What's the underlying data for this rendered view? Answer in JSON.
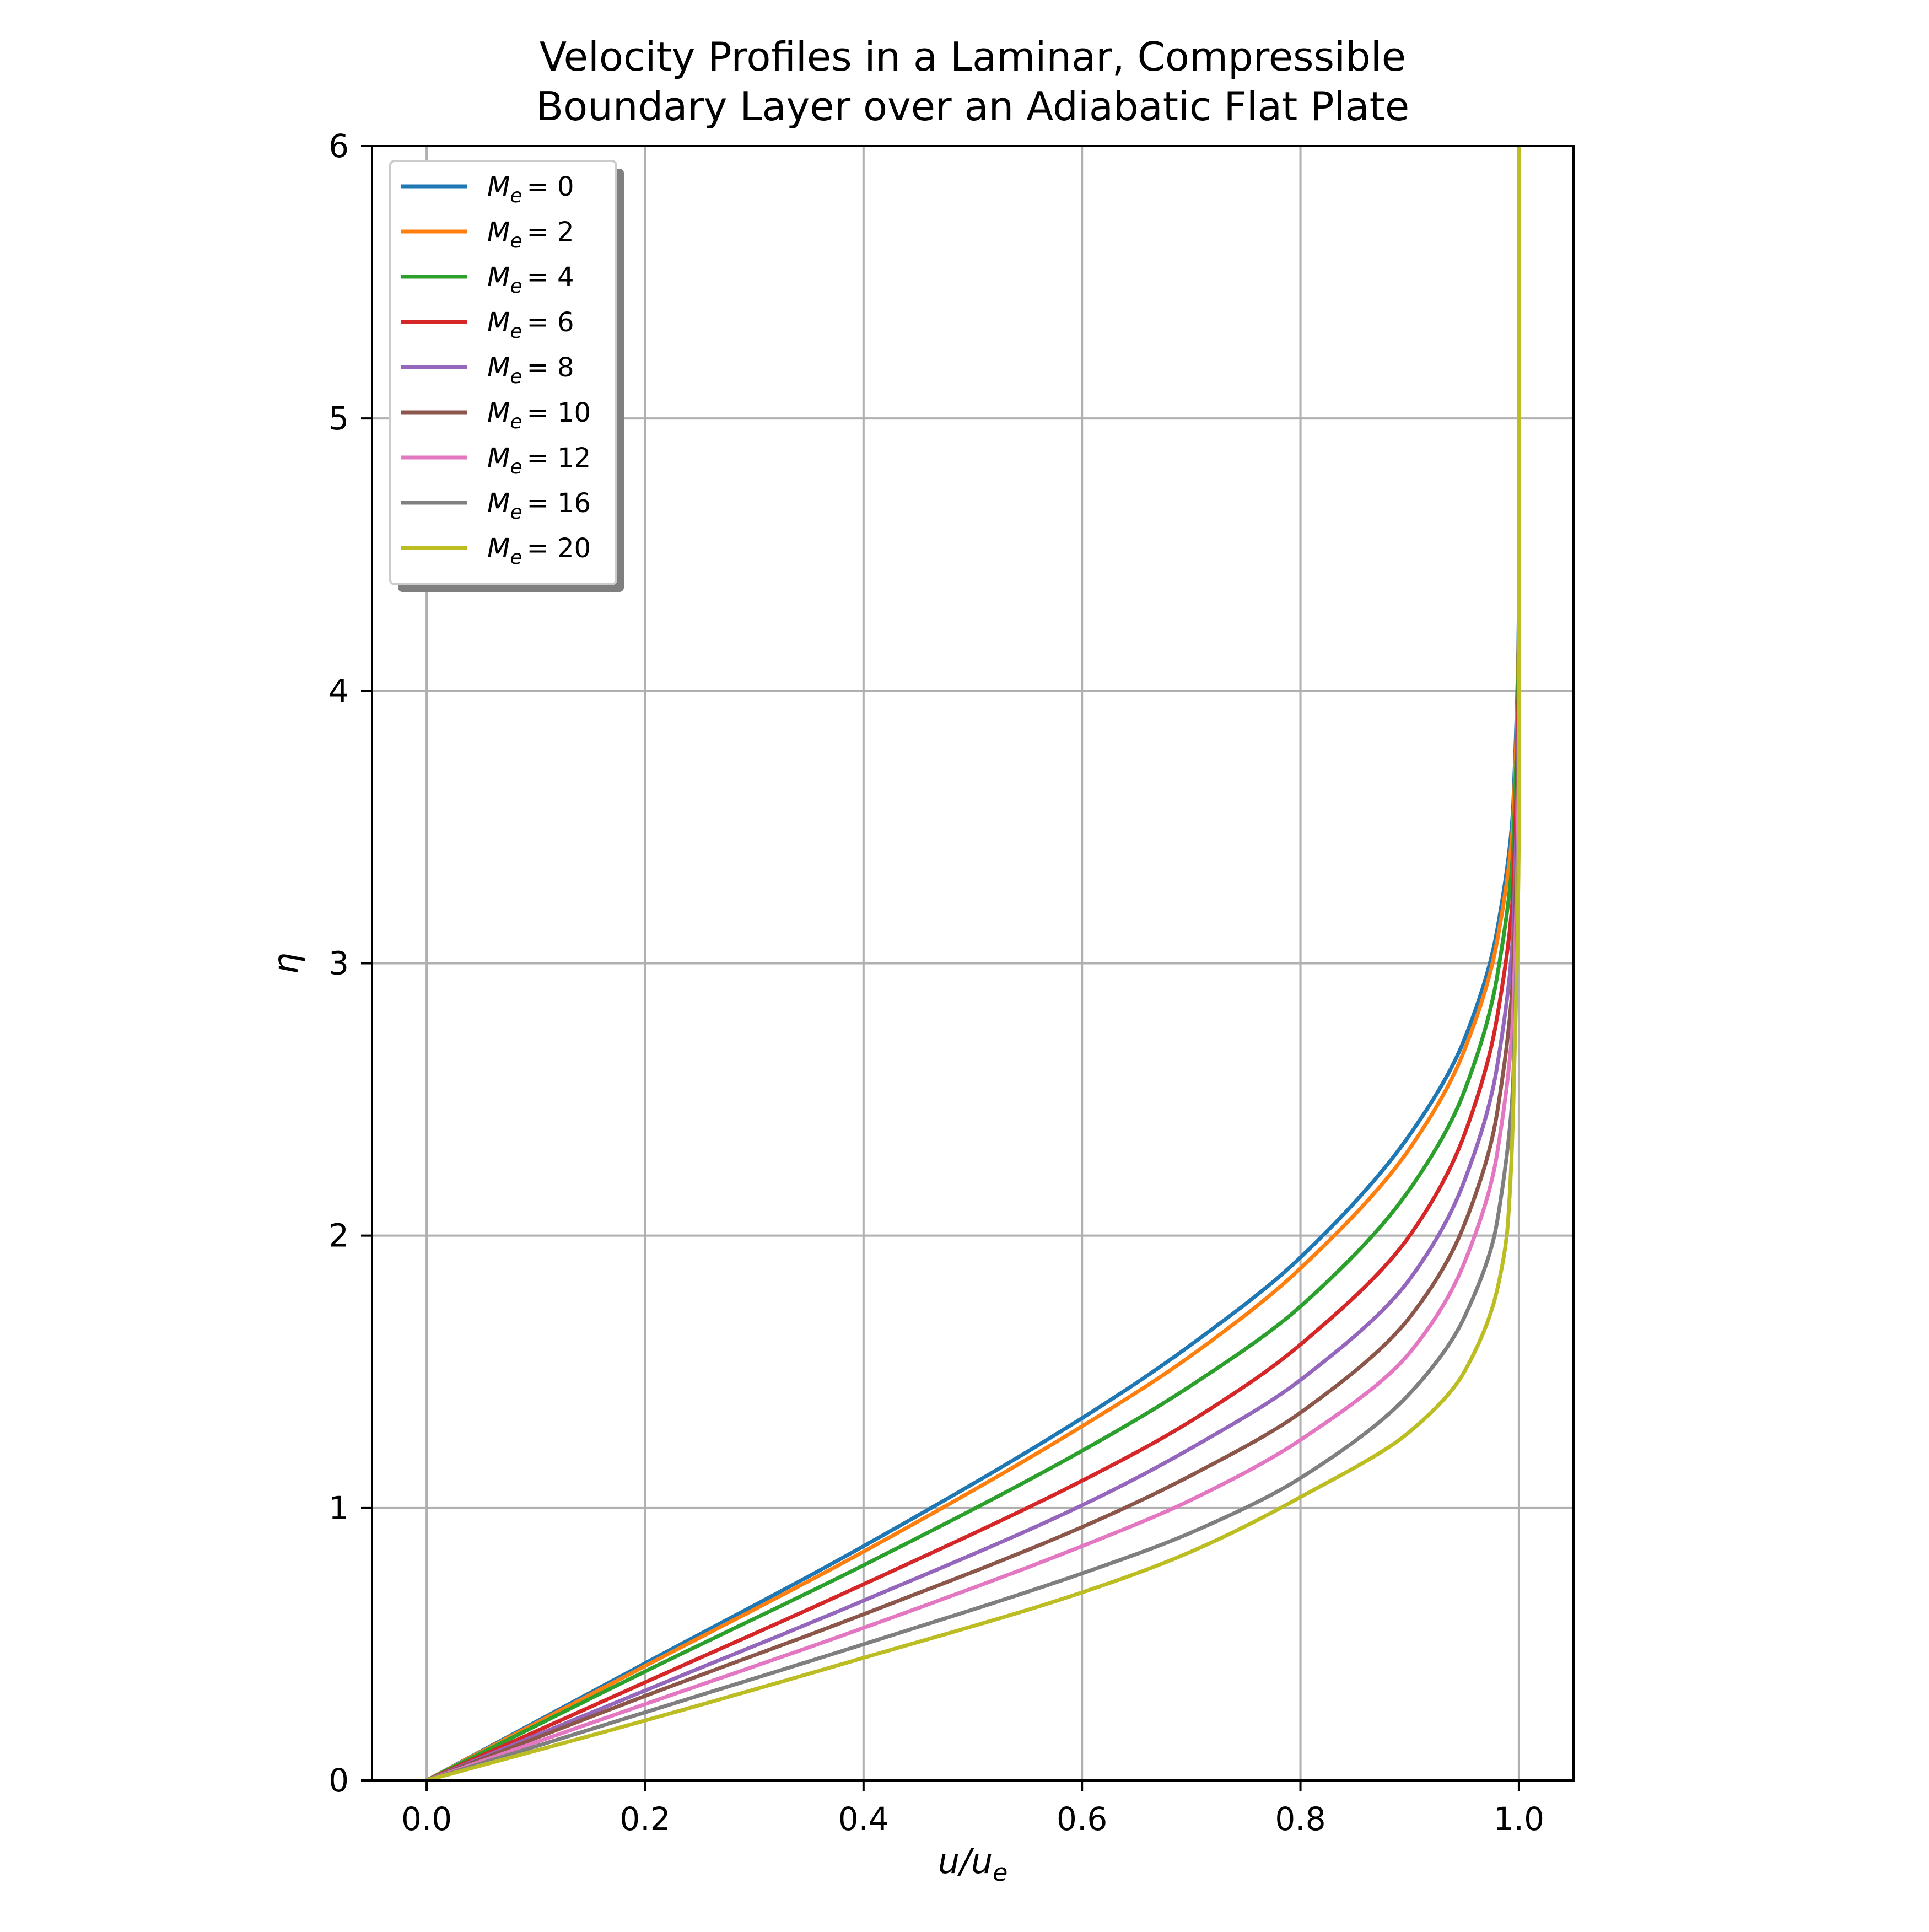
{
  "chart_data": {
    "type": "line",
    "title_lines": [
      "Velocity Profiles in a Laminar, Compressible",
      "Boundary Layer over an Adiabatic Flat Plate"
    ],
    "xlabel": {
      "main": "u/u",
      "sub": "e"
    },
    "ylabel": "η",
    "xlim": [
      -0.05,
      1.05
    ],
    "ylim": [
      0,
      6
    ],
    "x_ticks": [
      0.0,
      0.2,
      0.4,
      0.6,
      0.8,
      1.0
    ],
    "x_tick_labels": [
      "0.0",
      "0.2",
      "0.4",
      "0.6",
      "0.8",
      "1.0"
    ],
    "y_ticks": [
      0,
      1,
      2,
      3,
      4,
      5,
      6
    ],
    "y_tick_labels": [
      "0",
      "1",
      "2",
      "3",
      "4",
      "5",
      "6"
    ],
    "grid": true,
    "legend_position": "top-left",
    "series": [
      {
        "name": "M_e = 0",
        "label_main": "M",
        "label_sub": "e",
        "label_value": "= 0",
        "color": "#1f77b4",
        "u": [
          0,
          0.2,
          0.4,
          0.6,
          0.7,
          0.8,
          0.9,
          0.95,
          0.98,
          0.995,
          1.0,
          1.0
        ],
        "eta": [
          0,
          0.43,
          0.86,
          1.33,
          1.6,
          1.92,
          2.37,
          2.72,
          3.12,
          3.6,
          4.4,
          6.0
        ]
      },
      {
        "name": "M_e = 2",
        "label_main": "M",
        "label_sub": "e",
        "label_value": "= 2",
        "color": "#ff7f0e",
        "u": [
          0,
          0.2,
          0.4,
          0.6,
          0.7,
          0.8,
          0.9,
          0.95,
          0.98,
          0.995,
          1.0,
          1.0
        ],
        "eta": [
          0,
          0.42,
          0.84,
          1.3,
          1.56,
          1.88,
          2.32,
          2.68,
          3.08,
          3.55,
          4.35,
          6.0
        ]
      },
      {
        "name": "M_e = 4",
        "label_main": "M",
        "label_sub": "e",
        "label_value": "= 4",
        "color": "#2ca02c",
        "u": [
          0,
          0.2,
          0.4,
          0.6,
          0.7,
          0.8,
          0.9,
          0.95,
          0.98,
          0.995,
          1.0,
          1.0
        ],
        "eta": [
          0,
          0.4,
          0.79,
          1.21,
          1.45,
          1.74,
          2.17,
          2.53,
          2.95,
          3.45,
          4.3,
          6.0
        ]
      },
      {
        "name": "M_e = 6",
        "label_main": "M",
        "label_sub": "e",
        "label_value": "= 6",
        "color": "#d62728",
        "u": [
          0,
          0.2,
          0.4,
          0.6,
          0.7,
          0.8,
          0.9,
          0.95,
          0.98,
          0.995,
          1.0,
          1.0
        ],
        "eta": [
          0,
          0.36,
          0.72,
          1.1,
          1.32,
          1.6,
          2.0,
          2.37,
          2.8,
          3.3,
          4.2,
          6.0
        ]
      },
      {
        "name": "M_e = 8",
        "label_main": "M",
        "label_sub": "e",
        "label_value": "= 8",
        "color": "#9467bd",
        "u": [
          0,
          0.2,
          0.4,
          0.6,
          0.7,
          0.8,
          0.9,
          0.95,
          0.98,
          0.995,
          1.0,
          1.0
        ],
        "eta": [
          0,
          0.33,
          0.66,
          1.01,
          1.22,
          1.47,
          1.84,
          2.2,
          2.62,
          3.15,
          4.1,
          6.0
        ]
      },
      {
        "name": "M_e = 10",
        "label_main": "M",
        "label_sub": "e",
        "label_value": "= 10",
        "color": "#8c564b",
        "u": [
          0,
          0.2,
          0.4,
          0.6,
          0.7,
          0.8,
          0.9,
          0.95,
          0.98,
          0.995,
          1.0,
          1.0
        ],
        "eta": [
          0,
          0.31,
          0.61,
          0.93,
          1.12,
          1.35,
          1.7,
          2.04,
          2.45,
          3.0,
          4.0,
          6.0
        ]
      },
      {
        "name": "M_e = 12",
        "label_main": "M",
        "label_sub": "e",
        "label_value": "= 12",
        "color": "#e377c2",
        "u": [
          0,
          0.2,
          0.4,
          0.6,
          0.7,
          0.8,
          0.9,
          0.95,
          0.98,
          0.995,
          1.0,
          1.0
        ],
        "eta": [
          0,
          0.28,
          0.56,
          0.86,
          1.03,
          1.25,
          1.57,
          1.9,
          2.3,
          2.85,
          3.9,
          6.0
        ]
      },
      {
        "name": "M_e = 16",
        "label_main": "M",
        "label_sub": "e",
        "label_value": "= 16",
        "color": "#7f7f7f",
        "u": [
          0,
          0.2,
          0.4,
          0.6,
          0.7,
          0.8,
          0.9,
          0.95,
          0.98,
          0.995,
          1.0,
          1.0
        ],
        "eta": [
          0,
          0.25,
          0.5,
          0.76,
          0.91,
          1.11,
          1.42,
          1.7,
          2.05,
          2.6,
          3.7,
          6.0
        ]
      },
      {
        "name": "M_e = 20",
        "label_main": "M",
        "label_sub": "e",
        "label_value": "= 20",
        "color": "#bcbd22",
        "u": [
          0,
          0.2,
          0.4,
          0.6,
          0.7,
          0.8,
          0.9,
          0.95,
          0.98,
          0.99,
          0.995,
          1.0,
          1.0
        ],
        "eta": [
          0,
          0.22,
          0.45,
          0.69,
          0.84,
          1.04,
          1.28,
          1.5,
          1.8,
          2.05,
          2.5,
          3.6,
          6.0
        ]
      }
    ]
  }
}
